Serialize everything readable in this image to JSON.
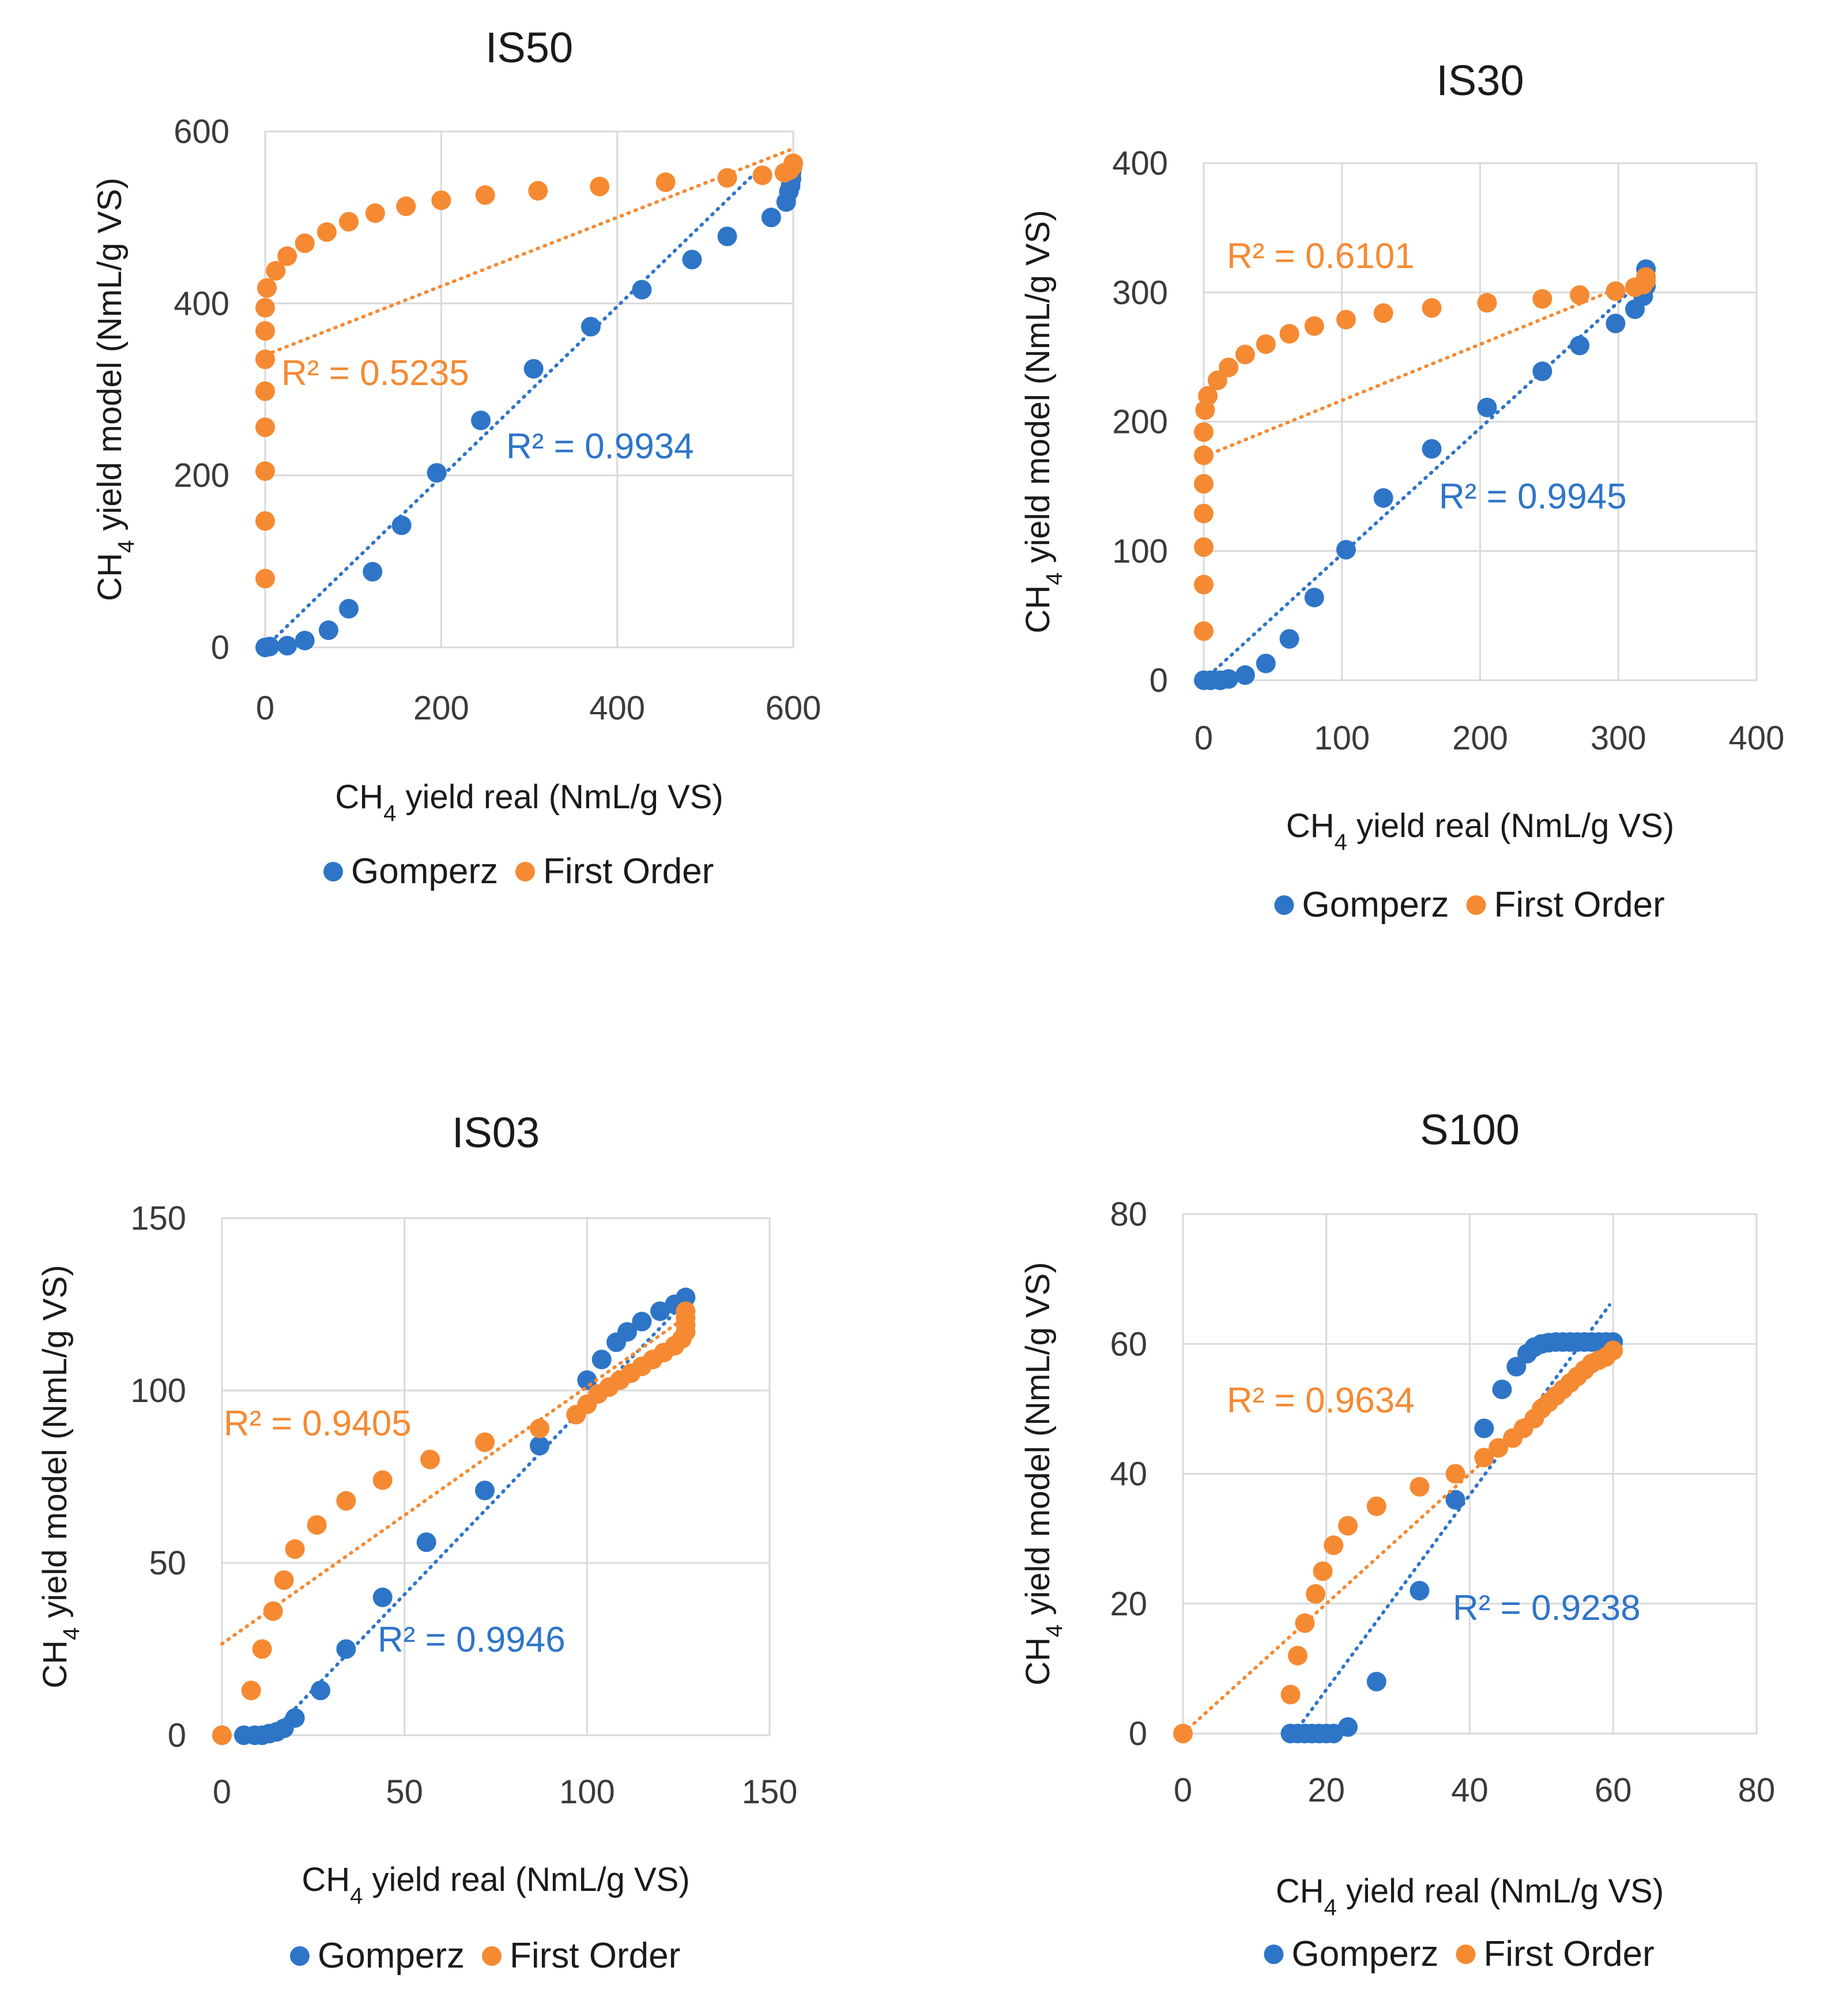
{
  "figure": {
    "legend_labels": [
      "Gomperz",
      "First Order"
    ]
  },
  "colors": {
    "gomperz": "#2E75C8",
    "first_order": "#F58A33",
    "grid": "#D9D9D9",
    "text": "#1A1A1A"
  },
  "chart_data": [
    {
      "id": "IS50",
      "type": "scatter",
      "title": "IS50",
      "xlabel": {
        "prefix": "CH",
        "sub": "4",
        "suffix": " yield real (NmL/g VS)"
      },
      "ylabel": {
        "prefix": "CH",
        "sub": "4",
        "suffix": " yield model (NmL/g VS)"
      },
      "xlim": [
        0,
        600
      ],
      "ylim": [
        0,
        600
      ],
      "xticks": [
        0,
        200,
        400,
        600
      ],
      "yticks": [
        0,
        200,
        400,
        600
      ],
      "grid": true,
      "legend": "bottom",
      "series": [
        {
          "name": "Gomperz",
          "color": "#2E75C8",
          "r2": "R² = 0.9934",
          "trend": {
            "x": [
              0,
              560
            ],
            "y": [
              0,
              555
            ]
          },
          "points": [
            [
              0,
              0
            ],
            [
              5,
              1
            ],
            [
              25,
              2
            ],
            [
              45,
              8
            ],
            [
              72,
              20
            ],
            [
              95,
              45
            ],
            [
              122,
              88
            ],
            [
              155,
              142
            ],
            [
              195,
              203
            ],
            [
              245,
              264
            ],
            [
              305,
              324
            ],
            [
              370,
              373
            ],
            [
              428,
              416
            ],
            [
              485,
              451
            ],
            [
              525,
              478
            ],
            [
              575,
              500
            ],
            [
              592,
              518
            ],
            [
              595,
              530
            ],
            [
              597,
              537
            ],
            [
              598,
              545
            ],
            [
              598,
              552
            ],
            [
              599,
              558
            ]
          ]
        },
        {
          "name": "First Order",
          "color": "#F58A33",
          "r2": "R² = 0.5235",
          "trend": {
            "x": [
              0,
              600
            ],
            "y": [
              340,
              580
            ]
          },
          "points": [
            [
              0,
              80
            ],
            [
              0,
              147
            ],
            [
              0,
              205
            ],
            [
              0,
              256
            ],
            [
              0,
              298
            ],
            [
              0,
              335
            ],
            [
              0,
              368
            ],
            [
              0,
              395
            ],
            [
              2,
              418
            ],
            [
              12,
              438
            ],
            [
              25,
              455
            ],
            [
              45,
              470
            ],
            [
              70,
              483
            ],
            [
              95,
              495
            ],
            [
              125,
              505
            ],
            [
              160,
              513
            ],
            [
              200,
              520
            ],
            [
              250,
              526
            ],
            [
              310,
              531
            ],
            [
              380,
              536
            ],
            [
              455,
              541
            ],
            [
              525,
              546
            ],
            [
              565,
              549
            ],
            [
              590,
              552
            ],
            [
              596,
              555
            ],
            [
              599,
              559
            ],
            [
              600,
              563
            ]
          ]
        }
      ]
    },
    {
      "id": "IS30",
      "type": "scatter",
      "title": "IS30",
      "xlabel": {
        "prefix": "CH",
        "sub": "4",
        "suffix": " yield real (NmL/g VS)"
      },
      "ylabel": {
        "prefix": "CH",
        "sub": "4",
        "suffix": " yield model (NmL/g VS)"
      },
      "xlim": [
        0,
        400
      ],
      "ylim": [
        0,
        400
      ],
      "xticks": [
        0,
        100,
        200,
        300,
        400
      ],
      "yticks": [
        0,
        100,
        200,
        300,
        400
      ],
      "grid": true,
      "legend": "bottom",
      "series": [
        {
          "name": "Gomperz",
          "color": "#2E75C8",
          "r2": "R² = 0.9945",
          "trend": {
            "x": [
              0,
              320
            ],
            "y": [
              0,
              312
            ]
          },
          "points": [
            [
              0,
              0
            ],
            [
              5,
              0
            ],
            [
              12,
              0
            ],
            [
              18,
              1
            ],
            [
              30,
              4
            ],
            [
              45,
              13
            ],
            [
              62,
              32
            ],
            [
              80,
              64
            ],
            [
              103,
              101
            ],
            [
              130,
              141
            ],
            [
              165,
              179
            ],
            [
              205,
              211
            ],
            [
              245,
              239
            ],
            [
              272,
              259
            ],
            [
              298,
              276
            ],
            [
              312,
              287
            ],
            [
              318,
              297
            ],
            [
              320,
              305
            ],
            [
              320,
              312
            ],
            [
              320,
              318
            ]
          ]
        },
        {
          "name": "First Order",
          "color": "#F58A33",
          "r2": "R² = 0.6101",
          "trend": {
            "x": [
              0,
              320
            ],
            "y": [
              173,
              312
            ]
          },
          "points": [
            [
              0,
              38
            ],
            [
              0,
              74
            ],
            [
              0,
              103
            ],
            [
              0,
              129
            ],
            [
              0,
              152
            ],
            [
              0,
              174
            ],
            [
              0,
              192
            ],
            [
              1,
              209
            ],
            [
              3,
              220
            ],
            [
              10,
              232
            ],
            [
              18,
              242
            ],
            [
              30,
              252
            ],
            [
              45,
              260
            ],
            [
              62,
              268
            ],
            [
              80,
              274
            ],
            [
              103,
              279
            ],
            [
              130,
              284
            ],
            [
              165,
              288
            ],
            [
              205,
              292
            ],
            [
              245,
              295
            ],
            [
              272,
              298
            ],
            [
              298,
              301
            ],
            [
              312,
              304
            ],
            [
              318,
              306
            ],
            [
              320,
              309
            ],
            [
              320,
              312
            ]
          ]
        }
      ]
    },
    {
      "id": "IS03",
      "type": "scatter",
      "title": "IS03",
      "xlabel": {
        "prefix": "CH",
        "sub": "4",
        "suffix": " yield real (NmL/g VS)"
      },
      "ylabel": {
        "prefix": "CH",
        "sub": "4",
        "suffix": " yield model (NmL/g VS)"
      },
      "xlim": [
        0,
        150
      ],
      "ylim": [
        0,
        150
      ],
      "xticks": [
        0,
        50,
        100,
        150
      ],
      "yticks": [
        0,
        50,
        100,
        150
      ],
      "grid": true,
      "legend": "bottom",
      "series": [
        {
          "name": "Gomperz",
          "color": "#2E75C8",
          "r2": "R² = 0.9946",
          "trend": {
            "x": [
              13,
              128
            ],
            "y": [
              0,
              127
            ]
          },
          "points": [
            [
              0,
              0
            ],
            [
              6,
              0
            ],
            [
              9,
              0
            ],
            [
              11,
              0
            ],
            [
              13,
              0.5
            ],
            [
              15,
              1
            ],
            [
              17,
              2
            ],
            [
              20,
              5
            ],
            [
              27,
              13
            ],
            [
              34,
              25
            ],
            [
              44,
              40
            ],
            [
              56,
              56
            ],
            [
              72,
              71
            ],
            [
              87,
              84
            ],
            [
              100,
              103
            ],
            [
              104,
              109
            ],
            [
              108,
              114
            ],
            [
              111,
              117
            ],
            [
              115,
              120
            ],
            [
              120,
              123
            ],
            [
              124,
              125
            ],
            [
              127,
              127
            ]
          ]
        },
        {
          "name": "First Order",
          "color": "#F58A33",
          "r2": "R² = 0.9405",
          "trend": {
            "x": [
              0,
              128
            ],
            "y": [
              26.5,
              122
            ]
          },
          "points": [
            [
              0,
              0
            ],
            [
              8,
              13
            ],
            [
              11,
              25
            ],
            [
              14,
              36
            ],
            [
              17,
              45
            ],
            [
              20,
              54
            ],
            [
              26,
              61
            ],
            [
              34,
              68
            ],
            [
              44,
              74
            ],
            [
              57,
              80
            ],
            [
              72,
              85
            ],
            [
              87,
              89
            ],
            [
              97,
              93
            ],
            [
              100,
              96
            ],
            [
              103,
              99
            ],
            [
              106,
              101
            ],
            [
              109,
              103
            ],
            [
              112,
              105
            ],
            [
              115,
              107
            ],
            [
              118,
              109
            ],
            [
              121,
              111
            ],
            [
              124,
              113
            ],
            [
              126,
              115
            ],
            [
              127,
              117
            ],
            [
              127,
              119
            ],
            [
              127,
              121
            ],
            [
              127,
              123
            ]
          ]
        }
      ]
    },
    {
      "id": "S100",
      "type": "scatter",
      "title": "S100",
      "xlabel": {
        "prefix": "CH",
        "sub": "4",
        "suffix": " yield real (NmL/g VS)"
      },
      "ylabel": {
        "prefix": "CH",
        "sub": "4",
        "suffix": " yield model (NmL/g VS)"
      },
      "xlim": [
        0,
        80
      ],
      "ylim": [
        0,
        80
      ],
      "xticks": [
        0,
        20,
        40,
        60,
        80
      ],
      "yticks": [
        0,
        20,
        40,
        60,
        80
      ],
      "grid": true,
      "legend": "bottom",
      "series": [
        {
          "name": "Gomperz",
          "color": "#2E75C8",
          "r2": "R² = 0.9238",
          "trend": {
            "x": [
              15.5,
              59.5
            ],
            "y": [
              0,
              66
            ]
          },
          "points": [
            [
              15,
              0
            ],
            [
              16,
              0
            ],
            [
              17,
              0
            ],
            [
              18,
              0
            ],
            [
              19,
              0
            ],
            [
              20,
              0
            ],
            [
              21,
              0
            ],
            [
              23,
              1
            ],
            [
              27,
              8
            ],
            [
              33,
              22
            ],
            [
              38,
              36
            ],
            [
              42,
              47
            ],
            [
              44.5,
              53
            ],
            [
              46.5,
              56.5
            ],
            [
              48,
              58.5
            ],
            [
              49,
              59.5
            ],
            [
              50,
              60
            ],
            [
              51,
              60.2
            ],
            [
              52,
              60.3
            ],
            [
              53,
              60.3
            ],
            [
              54,
              60.3
            ],
            [
              55,
              60.3
            ],
            [
              56,
              60.3
            ],
            [
              57,
              60.3
            ],
            [
              58,
              60.3
            ],
            [
              59,
              60.3
            ],
            [
              60,
              60.3
            ]
          ]
        },
        {
          "name": "First Order",
          "color": "#F58A33",
          "r2": "R² = 0.9634",
          "trend": {
            "x": [
              0,
              60
            ],
            "y": [
              0,
              60
            ]
          },
          "points": [
            [
              0,
              0
            ],
            [
              15,
              6
            ],
            [
              16,
              12
            ],
            [
              17,
              17
            ],
            [
              18.5,
              21.5
            ],
            [
              19.5,
              25
            ],
            [
              21,
              29
            ],
            [
              23,
              32
            ],
            [
              27,
              35
            ],
            [
              33,
              38
            ],
            [
              38,
              40
            ],
            [
              42,
              42.5
            ],
            [
              44,
              44
            ],
            [
              46,
              45.5
            ],
            [
              47.5,
              47
            ],
            [
              49,
              48.5
            ],
            [
              50,
              50
            ],
            [
              51,
              51
            ],
            [
              52,
              52
            ],
            [
              53,
              53
            ],
            [
              54,
              54
            ],
            [
              55,
              55
            ],
            [
              56,
              56
            ],
            [
              57,
              57
            ],
            [
              58,
              57.5
            ],
            [
              59,
              58
            ],
            [
              60,
              59
            ]
          ]
        }
      ]
    }
  ]
}
